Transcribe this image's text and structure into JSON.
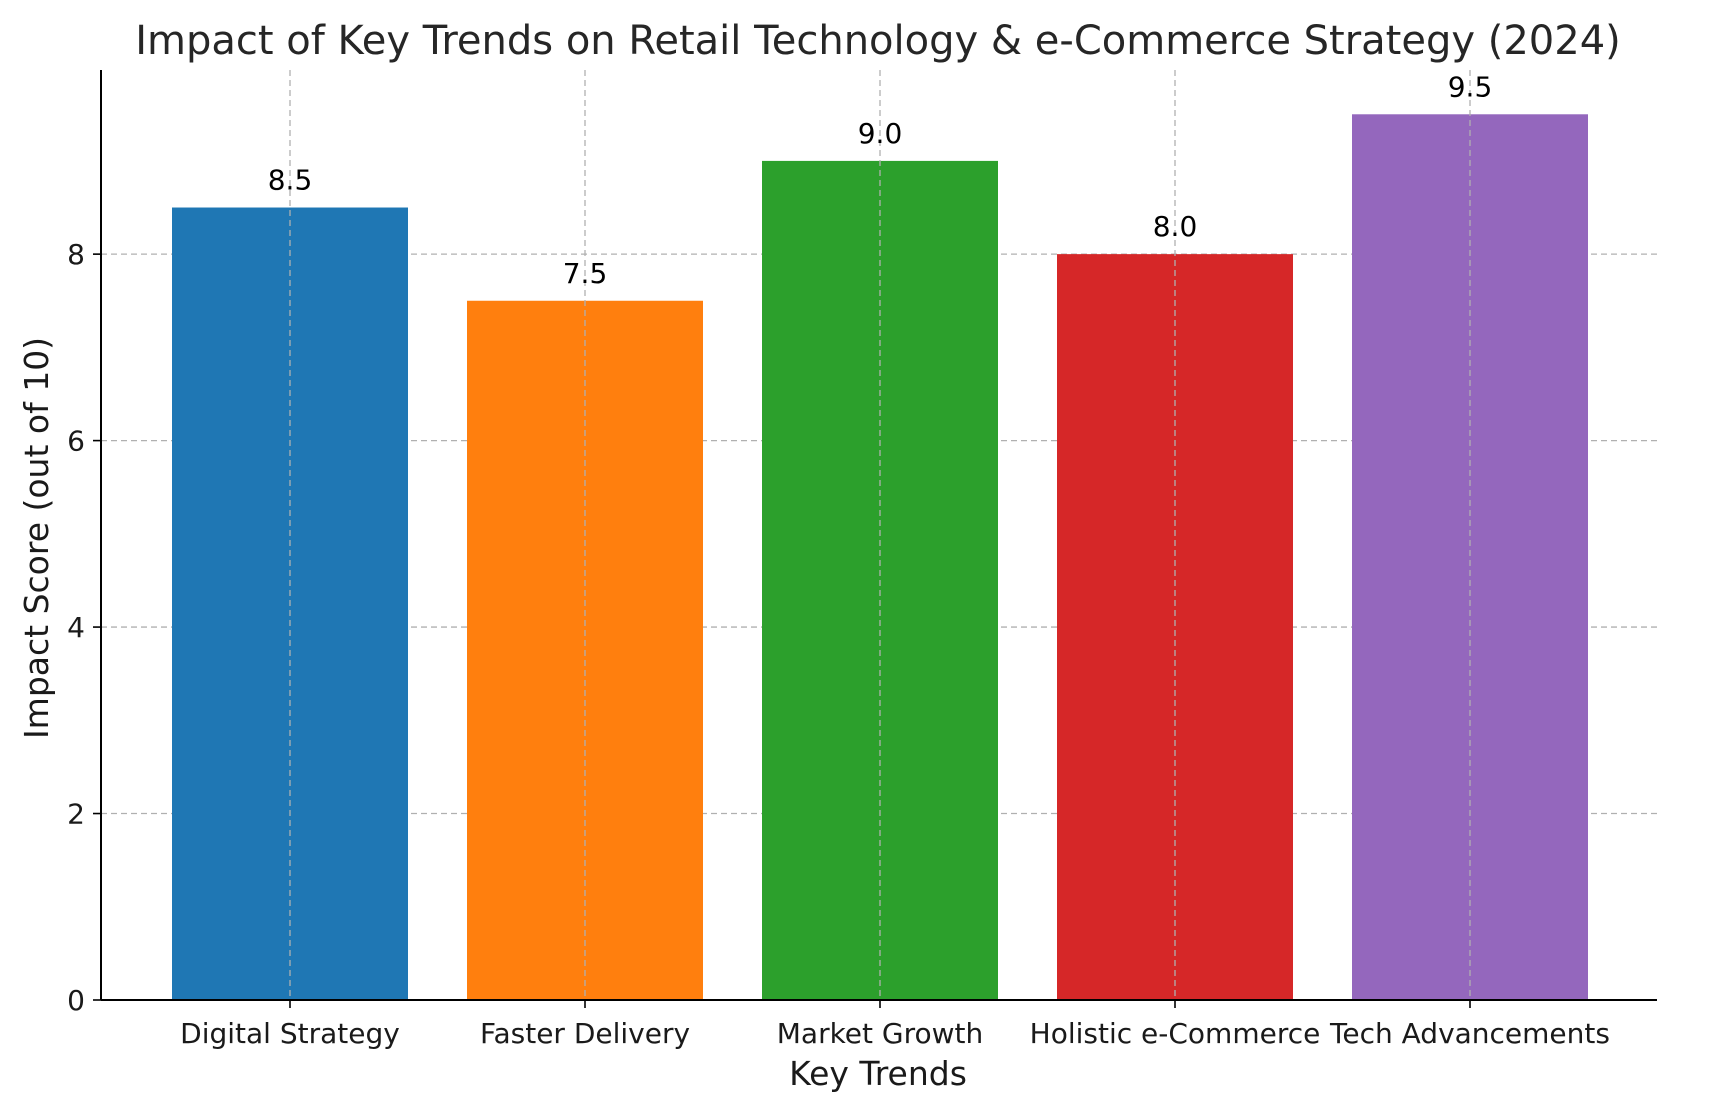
{
  "chart_data": {
    "type": "bar",
    "title": "Impact of Key Trends on Retail Technology & e-Commerce Strategy (2024)",
    "xlabel": "Key Trends",
    "ylabel": "Impact Score (out of 10)",
    "categories": [
      "Digital Strategy",
      "Faster Delivery",
      "Market Growth",
      "Holistic e-Commerce",
      "Tech Advancements"
    ],
    "values": [
      8.5,
      7.5,
      9.0,
      8.0,
      9.5
    ],
    "value_labels": [
      "8.5",
      "7.5",
      "9.0",
      "8.0",
      "9.5"
    ],
    "colors": [
      "#1f77b4",
      "#ff7f0e",
      "#2ca02c",
      "#d62728",
      "#9467bd"
    ],
    "ylim": [
      0,
      9.975
    ],
    "yticks": [
      0,
      2,
      4,
      6,
      8
    ],
    "grid": true,
    "legend": "none"
  }
}
